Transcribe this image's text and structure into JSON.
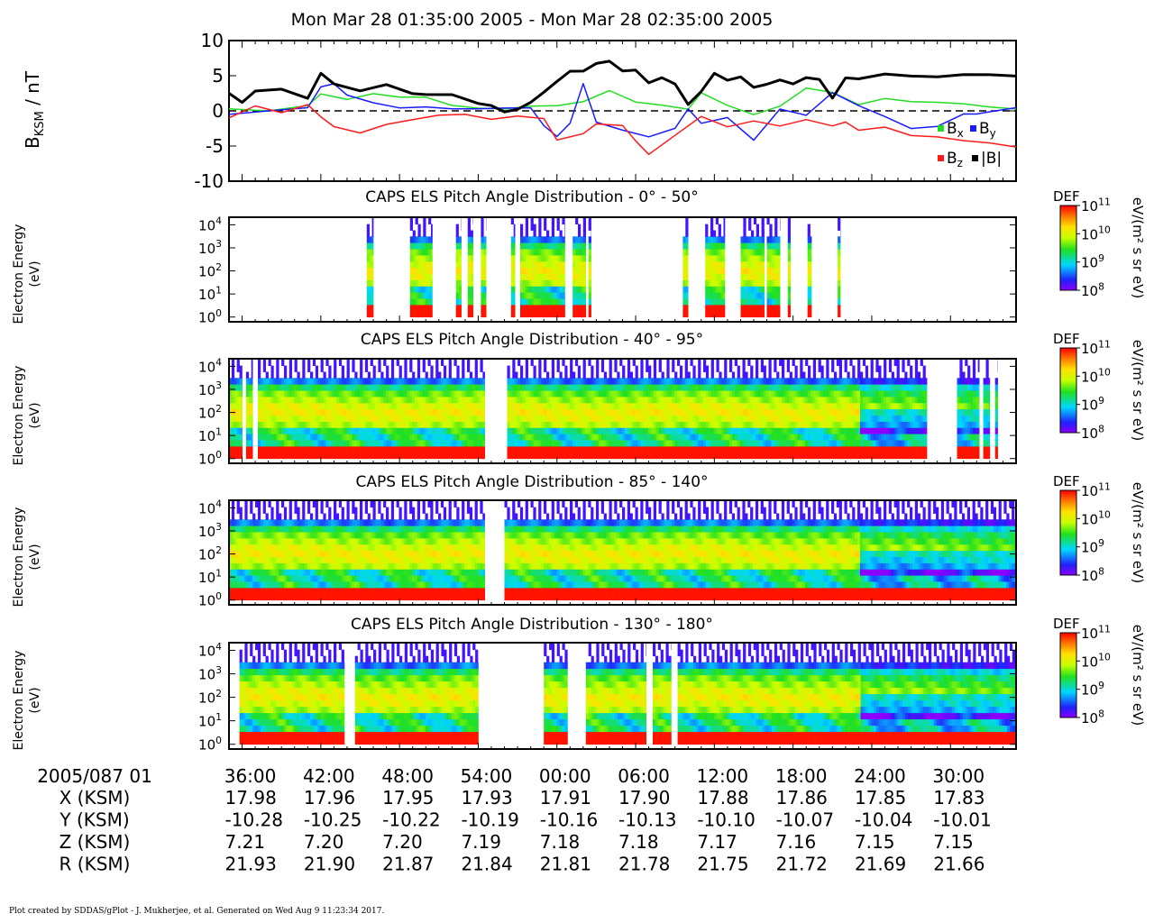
{
  "title": "Mon Mar 28 01:35:00 2005 - Mon Mar 28 02:35:00 2005",
  "footer": "Plot created by SDDAS/gPlot - J. Mukherjee, et al.  Generated on Wed Aug 9 11:23:34 2017.",
  "colors": {
    "bx": "#22dd22",
    "by": "#1a1aff",
    "bz": "#ff1a1a",
    "btot": "#000000"
  },
  "chart_data": [
    {
      "type": "line",
      "ylabel_main": "B",
      "ylabel_sub": "KSM",
      "ylabel_unit": " / nT",
      "ylim": [
        -10,
        10
      ],
      "yticks": [
        "10",
        "5",
        "0",
        "-5",
        "-10"
      ],
      "x_unit": "minutes after 01:35",
      "xlim": [
        0,
        60
      ],
      "zero_line": "dashed",
      "legend": [
        {
          "main": "B",
          "sub": "x",
          "color_key": "bx"
        },
        {
          "main": "B",
          "sub": "y",
          "color_key": "by"
        },
        {
          "main": "B",
          "sub": "z",
          "color_key": "bz"
        },
        {
          "main": "|B|",
          "sub": "",
          "color_key": "btot"
        }
      ],
      "series": [
        {
          "name": "Bx",
          "color_key": "bx",
          "x": [
            0,
            3,
            6,
            7,
            9,
            11,
            13,
            15,
            17,
            19,
            21,
            23,
            25,
            27,
            29,
            31,
            33,
            35,
            36,
            38,
            40,
            42,
            44,
            46,
            48,
            50,
            52,
            54,
            56,
            58,
            60
          ],
          "y": [
            0.3,
            0.2,
            0.5,
            2.5,
            1.5,
            2.2,
            1.8,
            2.0,
            1.0,
            0.6,
            0.3,
            0.5,
            0.5,
            1.2,
            3.0,
            1.5,
            1.0,
            0.2,
            2.8,
            1.0,
            -0.5,
            0.5,
            3.0,
            2.5,
            1.0,
            2.0,
            1.5,
            1.2,
            0.8,
            0.3,
            0.2
          ]
        },
        {
          "name": "By",
          "color_key": "by",
          "x": [
            0,
            3,
            6,
            7,
            8,
            9,
            11,
            13,
            15,
            17,
            19,
            21,
            23,
            24,
            25,
            26,
            27,
            28,
            30,
            32,
            34,
            35,
            36,
            38,
            40,
            42,
            44,
            46,
            48,
            50,
            52,
            54,
            56,
            57,
            58,
            60
          ],
          "y": [
            -0.5,
            0.2,
            0.2,
            3.5,
            4.0,
            2.0,
            1.0,
            0.5,
            0.8,
            0.5,
            0.3,
            0.2,
            0.2,
            -2.0,
            -3.5,
            -2.0,
            4.0,
            -1.5,
            -2.5,
            -3.5,
            -2.5,
            0.5,
            -2.0,
            -1.0,
            -4.0,
            0.5,
            -0.5,
            2.5,
            0.5,
            -1.0,
            -2.5,
            -2.0,
            -0.2,
            -0.5,
            -0.3,
            0.2
          ]
        },
        {
          "name": "Bz",
          "color_key": "bz",
          "x": [
            0,
            2,
            4,
            6,
            7,
            8,
            10,
            12,
            14,
            16,
            18,
            20,
            22,
            24,
            25,
            27,
            28,
            30,
            31,
            32,
            34,
            36,
            38,
            40,
            42,
            44,
            46,
            47,
            48,
            50,
            52,
            54,
            56,
            58,
            60
          ],
          "y": [
            -1.0,
            0.5,
            -0.5,
            0.8,
            -1.0,
            -2.0,
            -3.0,
            -2.0,
            -1.5,
            -0.8,
            -0.5,
            -1.0,
            -0.5,
            -1.0,
            -4.0,
            -3.0,
            -2.0,
            -2.0,
            -4.5,
            -6.0,
            -3.5,
            -1.0,
            -2.5,
            -1.5,
            -2.0,
            -1.0,
            -2.0,
            -1.5,
            -3.0,
            -2.5,
            -3.5,
            -3.5,
            -4.0,
            -4.5,
            -5.3
          ]
        },
        {
          "name": "|B|",
          "color_key": "btot",
          "x": [
            0,
            1,
            2,
            4,
            6,
            7,
            8,
            9,
            10,
            12,
            14,
            15,
            17,
            19,
            20,
            21,
            22,
            23,
            24,
            25,
            26,
            27,
            28,
            29,
            30,
            31,
            32,
            33,
            34,
            35,
            36,
            37,
            38,
            39,
            40,
            41,
            42,
            43,
            44,
            45,
            46,
            47,
            48,
            50,
            52,
            54,
            56,
            58,
            60
          ],
          "y": [
            2.5,
            1.5,
            2.5,
            3.0,
            2.0,
            5.0,
            4.0,
            3.5,
            2.5,
            3.5,
            2.5,
            2.0,
            2.0,
            1.0,
            0.5,
            0.2,
            0.1,
            1.0,
            3.0,
            4.0,
            5.5,
            6.0,
            6.5,
            7.0,
            6.0,
            5.5,
            4.0,
            5.0,
            3.5,
            1.0,
            3.0,
            5.0,
            4.5,
            5.0,
            3.0,
            4.0,
            4.5,
            3.5,
            5.0,
            4.5,
            1.5,
            5.0,
            4.5,
            5.5,
            5.3,
            5.0,
            5.0,
            4.8,
            4.7
          ]
        }
      ]
    },
    {
      "type": "heatmap",
      "title": "CAPS ELS Pitch Angle Distribution - 0° - 50°",
      "ylabel": [
        "Electron Energy",
        "(eV)"
      ],
      "yticks": [
        0,
        1,
        2,
        3,
        4
      ],
      "colorbar": {
        "label": "DEF",
        "unit": "eV/(m² s sr eV)",
        "ticks": [
          8,
          9,
          10,
          11
        ]
      },
      "data_intervals_min": [
        [
          10.5,
          11.0
        ],
        [
          13.8,
          15.5
        ],
        [
          17.3,
          17.7
        ],
        [
          18.2,
          18.6
        ],
        [
          19.2,
          19.6
        ],
        [
          21.5,
          21.8
        ],
        [
          22.2,
          25.6
        ],
        [
          26.2,
          27.2
        ],
        [
          27.4,
          27.6
        ],
        [
          34.6,
          35.0
        ],
        [
          36.3,
          37.8
        ],
        [
          39.0,
          40.8
        ],
        [
          41.0,
          42.0
        ],
        [
          42.6,
          42.8
        ],
        [
          44.1,
          44.4
        ],
        [
          46.4,
          46.6
        ]
      ],
      "peak_band_eV_log": 2.0
    },
    {
      "type": "heatmap",
      "title": "CAPS ELS Pitch Angle Distribution - 40° - 95°",
      "ylabel": [
        "Electron Energy",
        "(eV)"
      ],
      "yticks": [
        0,
        1,
        2,
        3,
        4
      ],
      "colorbar": {
        "label": "DEF",
        "unit": "eV/(m² s sr eV)",
        "ticks": [
          8,
          9,
          10,
          11
        ]
      },
      "data_intervals_min": [
        [
          0,
          1.0
        ],
        [
          1.3,
          1.8
        ],
        [
          2.2,
          19.5
        ],
        [
          21.2,
          53.2
        ],
        [
          55.5,
          57.2
        ],
        [
          57.5,
          58.0
        ],
        [
          58.4,
          58.6
        ]
      ],
      "peak_band_eV_log": 2.0
    },
    {
      "type": "heatmap",
      "title": "CAPS ELS Pitch Angle Distribution - 85° - 140°",
      "ylabel": [
        "Electron Energy",
        "(eV)"
      ],
      "yticks": [
        0,
        1,
        2,
        3,
        4
      ],
      "colorbar": {
        "label": "DEF",
        "unit": "eV/(m² s sr eV)",
        "ticks": [
          8,
          9,
          10,
          11
        ]
      },
      "data_intervals_min": [
        [
          0,
          19.5
        ],
        [
          21.0,
          60
        ]
      ],
      "peak_band_eV_log": 2.0
    },
    {
      "type": "heatmap",
      "title": "CAPS ELS Pitch Angle Distribution - 130° - 180°",
      "ylabel": [
        "Electron Energy",
        "(eV)"
      ],
      "yticks": [
        0,
        1,
        2,
        3,
        4
      ],
      "colorbar": {
        "label": "DEF",
        "unit": "eV/(m² s sr eV)",
        "ticks": [
          8,
          9,
          10,
          11
        ]
      },
      "data_intervals_min": [
        [
          0.8,
          8.8
        ],
        [
          9.6,
          19.0
        ],
        [
          24.0,
          25.8
        ],
        [
          27.2,
          31.8
        ],
        [
          32.3,
          33.7
        ],
        [
          34.2,
          60
        ]
      ],
      "peak_band_eV_log": 2.0
    }
  ],
  "ephemeris": {
    "date_label": "2005/087 01",
    "times": [
      "36:00",
      "42:00",
      "48:00",
      "54:00",
      "00:00",
      "06:00",
      "12:00",
      "18:00",
      "24:00",
      "30:00"
    ],
    "rows": [
      {
        "label": "X (KSM)",
        "values": [
          "17.98",
          "17.96",
          "17.95",
          "17.93",
          "17.91",
          "17.90",
          "17.88",
          "17.86",
          "17.85",
          "17.83"
        ]
      },
      {
        "label": "Y (KSM)",
        "values": [
          "-10.28",
          "-10.25",
          "-10.22",
          "-10.19",
          "-10.16",
          "-10.13",
          "-10.10",
          "-10.07",
          "-10.04",
          "-10.01"
        ]
      },
      {
        "label": "Z (KSM)",
        "values": [
          "7.21",
          "7.20",
          "7.20",
          "7.19",
          "7.18",
          "7.18",
          "7.17",
          "7.16",
          "7.15",
          "7.15"
        ]
      },
      {
        "label": "R (KSM)",
        "values": [
          "21.93",
          "21.90",
          "21.87",
          "21.84",
          "21.81",
          "21.78",
          "21.75",
          "21.72",
          "21.69",
          "21.66"
        ]
      }
    ]
  }
}
